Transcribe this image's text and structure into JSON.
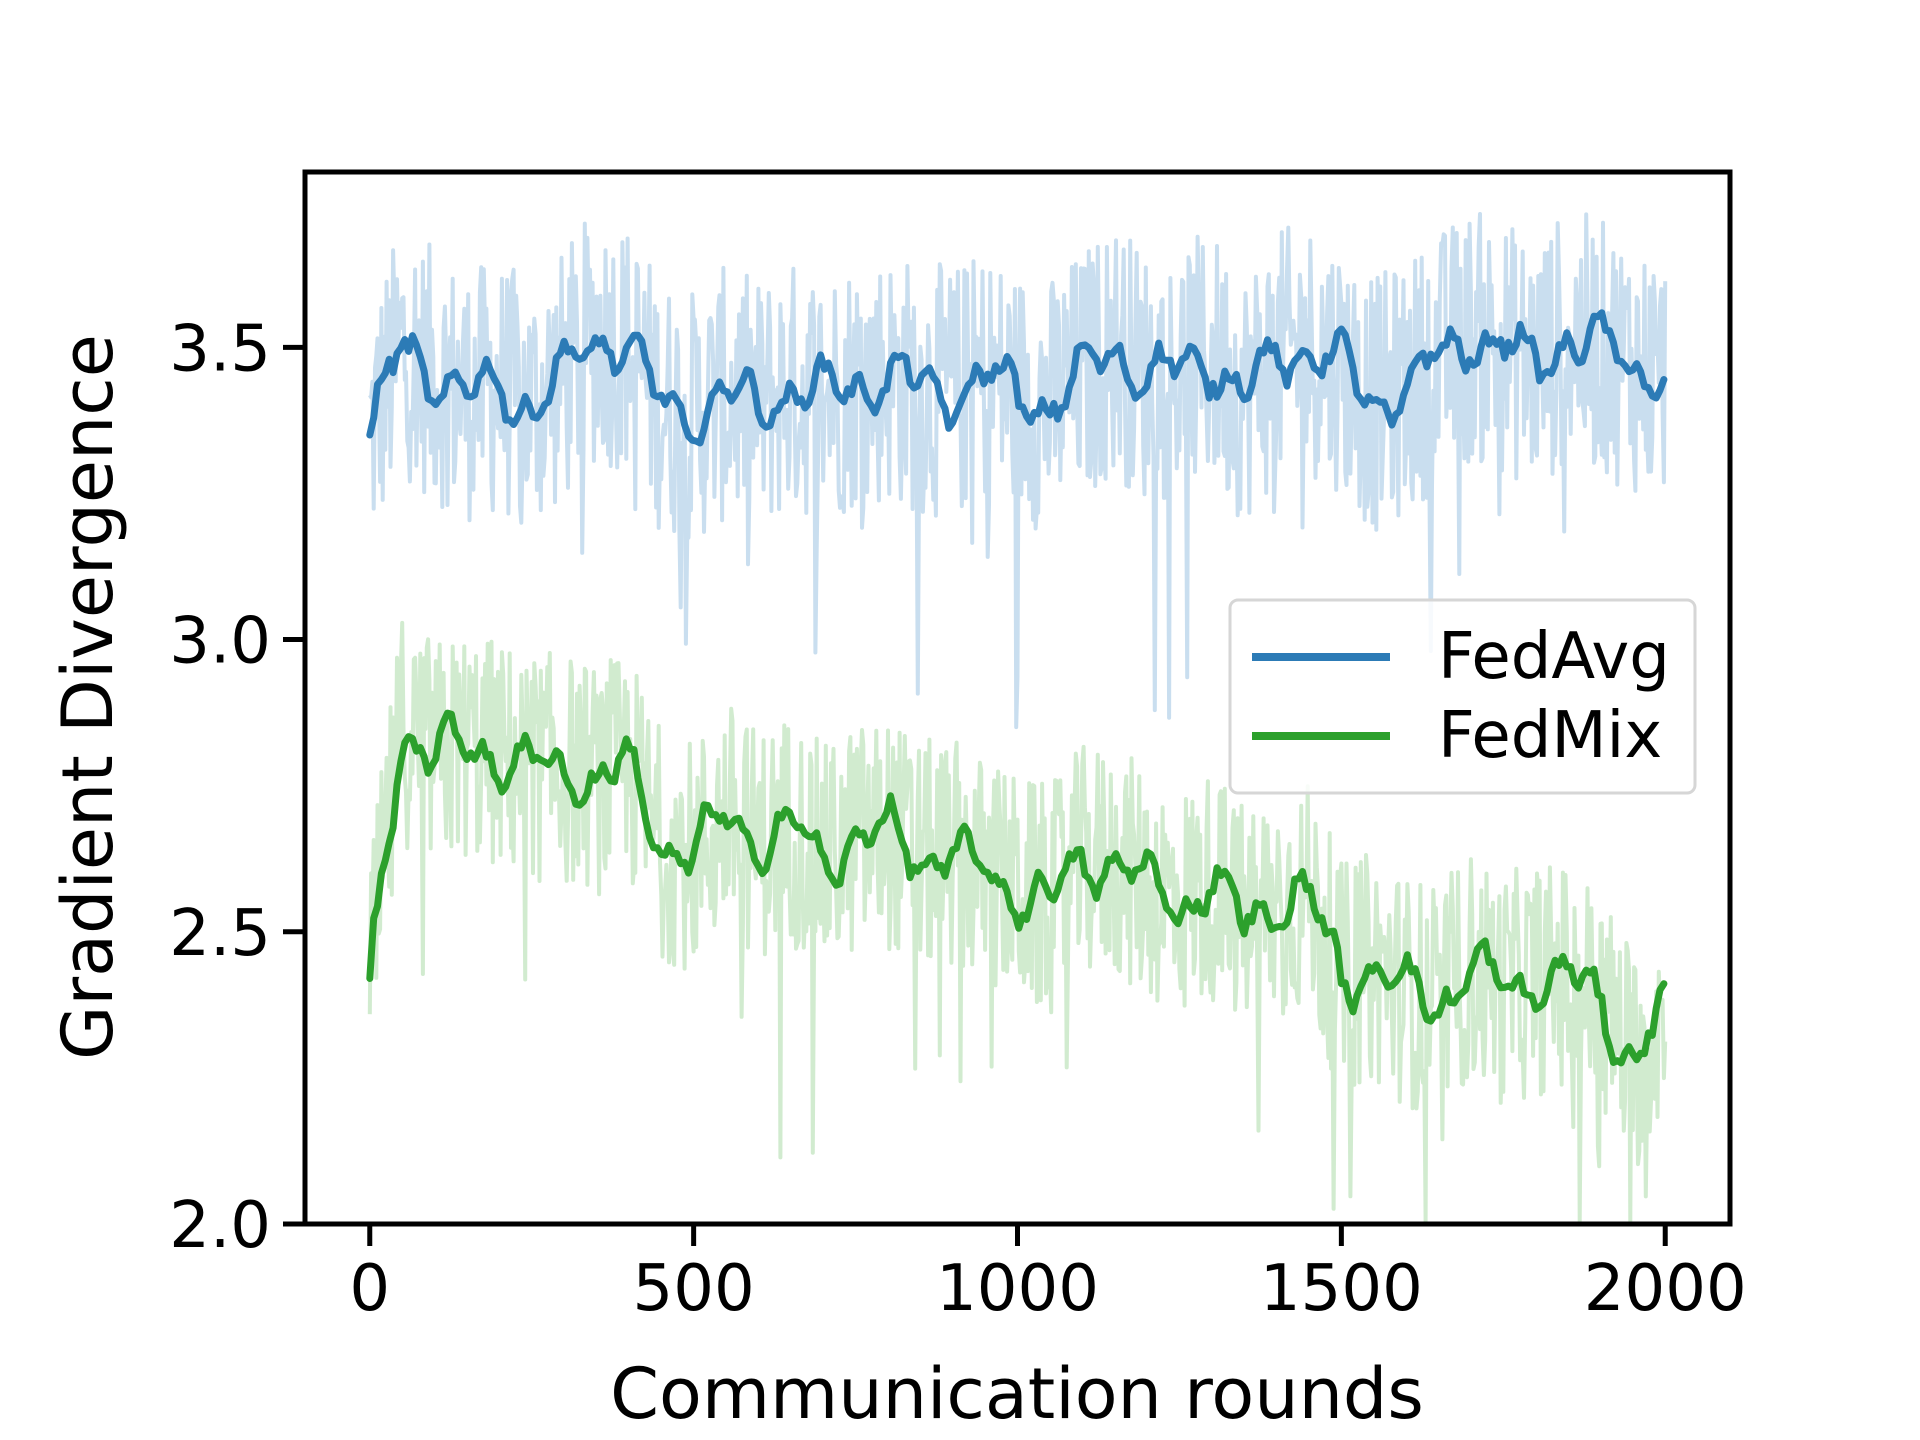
{
  "chart_data": {
    "type": "line",
    "title": "",
    "xlabel": "Communication rounds",
    "ylabel": "Gradient Divergence",
    "xlim": [
      -100,
      2100
    ],
    "ylim": [
      2.0,
      3.8
    ],
    "xticks": [
      0,
      500,
      1000,
      1500,
      2000
    ],
    "xtick_labels": [
      "0",
      "500",
      "1000",
      "1500",
      "2000"
    ],
    "yticks": [
      2.0,
      2.5,
      3.0,
      3.5
    ],
    "ytick_labels": [
      "2.0",
      "2.5",
      "3.0",
      "3.5"
    ],
    "legend_position": "center-right",
    "x": [
      0,
      50,
      100,
      150,
      200,
      250,
      300,
      350,
      400,
      450,
      500,
      550,
      600,
      650,
      700,
      750,
      800,
      850,
      900,
      950,
      1000,
      1050,
      1100,
      1150,
      1200,
      1250,
      1300,
      1350,
      1400,
      1450,
      1500,
      1550,
      1600,
      1650,
      1700,
      1750,
      1800,
      1850,
      1900,
      1950,
      2000
    ],
    "series": [
      {
        "name": "FedAvg",
        "color": "#2c7bb6",
        "raw_color": "#c6dcee",
        "raw_amplitude": 0.22,
        "values": [
          3.35,
          3.5,
          3.45,
          3.42,
          3.43,
          3.4,
          3.45,
          3.52,
          3.5,
          3.4,
          3.38,
          3.42,
          3.4,
          3.43,
          3.42,
          3.44,
          3.45,
          3.43,
          3.42,
          3.45,
          3.42,
          3.4,
          3.45,
          3.5,
          3.45,
          3.46,
          3.48,
          3.42,
          3.48,
          3.5,
          3.47,
          3.4,
          3.43,
          3.48,
          3.52,
          3.5,
          3.47,
          3.52,
          3.5,
          3.47,
          3.45
        ]
      },
      {
        "name": "FedMix",
        "color": "#2ca02c",
        "raw_color": "#cfeacc",
        "raw_amplitude": 0.2,
        "values": [
          2.42,
          2.85,
          2.8,
          2.82,
          2.8,
          2.78,
          2.78,
          2.76,
          2.78,
          2.65,
          2.63,
          2.7,
          2.65,
          2.68,
          2.62,
          2.66,
          2.67,
          2.63,
          2.63,
          2.6,
          2.57,
          2.55,
          2.62,
          2.62,
          2.58,
          2.55,
          2.58,
          2.52,
          2.55,
          2.56,
          2.42,
          2.44,
          2.4,
          2.38,
          2.44,
          2.4,
          2.42,
          2.42,
          2.38,
          2.28,
          2.37
        ]
      }
    ]
  }
}
